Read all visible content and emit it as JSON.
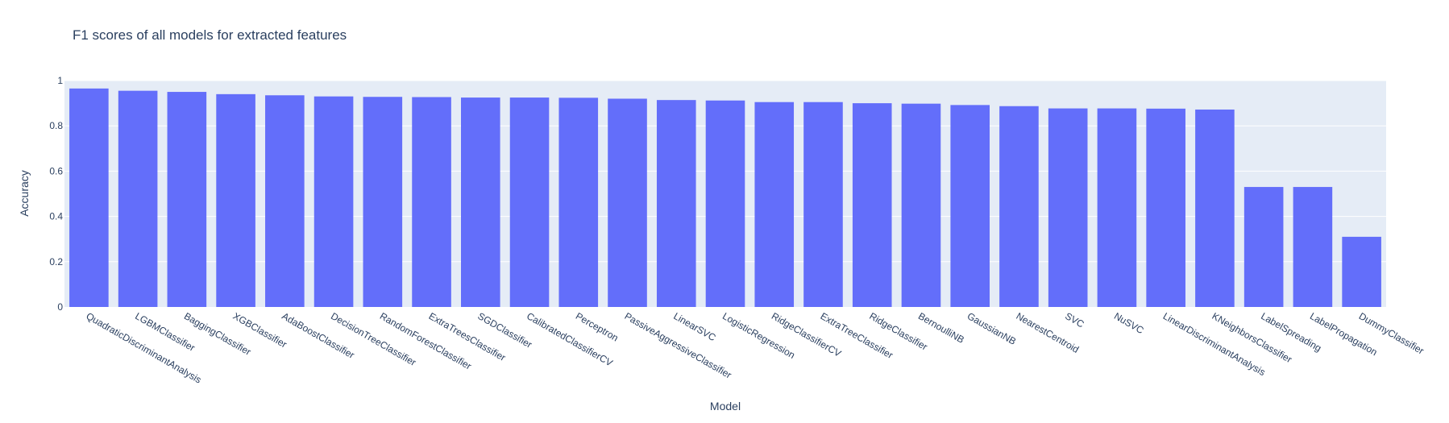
{
  "chart_data": {
    "type": "bar",
    "title": "F1 scores of all models for extracted features",
    "xlabel": "Model",
    "ylabel": "Accuracy",
    "ylim": [
      0,
      1
    ],
    "yticks": [
      "0",
      "0.2",
      "0.4",
      "0.6",
      "0.8",
      "1"
    ],
    "grid": true,
    "colors": {
      "bar": "#636efa",
      "plot_bg": "#e5ecf6",
      "grid": "#ffffff",
      "text": "#2a3f5f"
    },
    "categories": [
      "QuadraticDiscriminantAnalysis",
      "LGBMClassifier",
      "BaggingClassifier",
      "XGBClassifier",
      "AdaBoostClassifier",
      "DecisionTreeClassifier",
      "RandomForestClassifier",
      "ExtraTreesClassifier",
      "SGDClassifier",
      "CalibratedClassifierCV",
      "Perceptron",
      "PassiveAggressiveClassifier",
      "LinearSVC",
      "LogisticRegression",
      "RidgeClassifierCV",
      "ExtraTreeClassifier",
      "RidgeClassifier",
      "BernoulliNB",
      "GaussianNB",
      "NearestCentroid",
      "SVC",
      "NuSVC",
      "LinearDiscriminantAnalysis",
      "KNeighborsClassifier",
      "LabelSpreading",
      "LabelPropagation",
      "DummyClassifier"
    ],
    "values": [
      0.965,
      0.955,
      0.95,
      0.94,
      0.935,
      0.93,
      0.928,
      0.927,
      0.925,
      0.925,
      0.924,
      0.92,
      0.914,
      0.912,
      0.905,
      0.905,
      0.9,
      0.898,
      0.892,
      0.887,
      0.877,
      0.877,
      0.876,
      0.872,
      0.53,
      0.53,
      0.31
    ]
  }
}
